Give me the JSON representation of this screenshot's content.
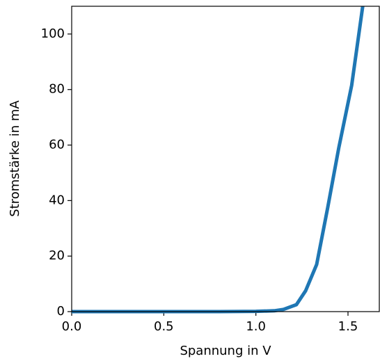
{
  "chart_data": {
    "type": "line",
    "xlabel": "Spannung in V",
    "ylabel": "Stromstärke in mA",
    "x": [
      0.0,
      0.2,
      0.4,
      0.6,
      0.8,
      1.0,
      1.1,
      1.15,
      1.22,
      1.27,
      1.33,
      1.39,
      1.45,
      1.52,
      1.58
    ],
    "series": [
      {
        "color": "#1f77b4",
        "values": [
          0,
          0,
          0,
          0,
          0,
          0.1,
          0.3,
          0.8,
          2.5,
          7.5,
          17,
          37.5,
          59,
          81.5,
          110
        ]
      }
    ],
    "xlim": [
      0,
      1.67
    ],
    "ylim": [
      0,
      110
    ],
    "xticks": [
      {
        "value": 0,
        "label": "0.0"
      },
      0.5,
      {
        "value": 1,
        "label": "1.0"
      },
      1.5
    ],
    "yticks": [
      0,
      20,
      40,
      60,
      80,
      100
    ]
  }
}
